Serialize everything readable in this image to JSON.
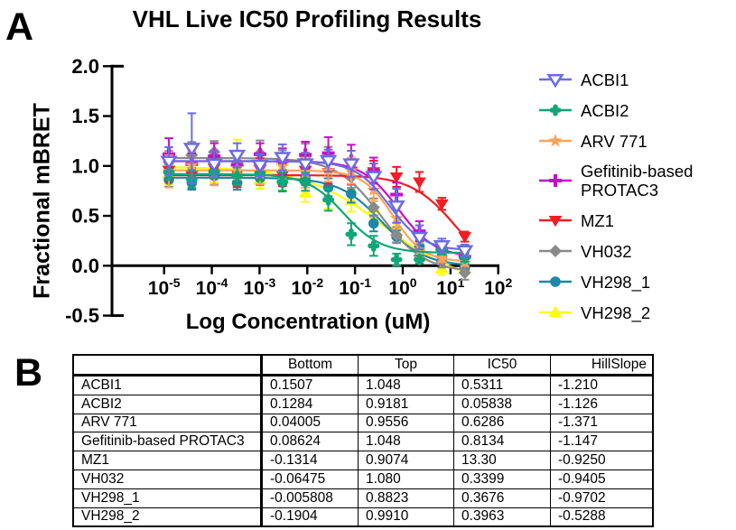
{
  "panel_a": {
    "label": "A"
  },
  "panel_b": {
    "label": "B"
  },
  "chart_data": {
    "type": "line",
    "title": "VHL Live IC50 Profiling Results",
    "xlabel": "Log Concentration (uM)",
    "ylabel": "Fractional mBRET",
    "x_scale": "log10",
    "x_tick_exponents": [
      -5,
      -4,
      -3,
      -2,
      -1,
      0,
      1,
      2
    ],
    "y_ticks": [
      "2.0",
      "1.5",
      "1.0",
      "0.5",
      "0.0",
      "-0.5"
    ],
    "ylim": [
      -0.5,
      2.0
    ],
    "legend_position": "right",
    "log_x": [
      -4.9,
      -4.42,
      -3.95,
      -3.47,
      -2.99,
      -2.52,
      -2.04,
      -1.56,
      -1.08,
      -0.61,
      -0.13,
      0.35,
      0.82,
      1.3
    ],
    "model": "Y = Bottom + (Top-Bottom)/(1+10^((log10(IC50)-X)*HillSlope))",
    "series": [
      {
        "name": "ACBI1",
        "color": "#6B6BE8",
        "marker": "triangle-down-open",
        "fit": {
          "bottom": 0.1507,
          "top": 1.048,
          "ic50": 0.5311,
          "hillslope": -1.21
        },
        "dev": [
          0.0,
          0.13,
          -0.03,
          0.06,
          -0.04,
          0.04,
          -0.02,
          0.03,
          0.06,
          0.1,
          0.09,
          0.0,
          0.01,
          -0.01
        ],
        "err": [
          0.14,
          0.35,
          0.13,
          0.12,
          0.11,
          0.13,
          0.11,
          0.11,
          0.13,
          0.13,
          0.17,
          0.12,
          0.07,
          0.06
        ]
      },
      {
        "name": "ACBI2",
        "color": "#10A678",
        "marker": "clover",
        "fit": {
          "bottom": 0.1284,
          "top": 0.9181,
          "ic50": 0.05838,
          "hillslope": -1.126
        },
        "dev": [
          0.02,
          -0.05,
          0.03,
          -0.02,
          0.02,
          -0.05,
          0.01,
          -0.02,
          -0.13,
          -0.06,
          -0.11,
          -0.08,
          0.03,
          -0.05
        ],
        "err": [
          0.08,
          0.09,
          0.07,
          0.09,
          0.07,
          0.09,
          0.09,
          0.11,
          0.11,
          0.1,
          0.06,
          0.04,
          0.05,
          0.04
        ]
      },
      {
        "name": "ARV 771",
        "color": "#F9A45B",
        "marker": "star",
        "fit": {
          "bottom": 0.04005,
          "top": 0.9556,
          "ic50": 0.6286,
          "hillslope": -1.371
        },
        "dev": [
          -0.01,
          0.05,
          -0.04,
          0.02,
          -0.03,
          0.04,
          -0.02,
          0.01,
          0.05,
          0.0,
          0.03,
          -0.02,
          0.0,
          -0.02
        ],
        "err": [
          0.16,
          0.14,
          0.11,
          0.11,
          0.11,
          0.13,
          0.15,
          0.11,
          0.13,
          0.11,
          0.1,
          0.07,
          0.04,
          0.03
        ]
      },
      {
        "name": "Gefitinib-based PROTAC3",
        "color": "#C511C5",
        "marker": "plus",
        "fit": {
          "bottom": 0.08624,
          "top": 1.048,
          "ic50": 0.8134,
          "hillslope": -1.147
        },
        "dev": [
          0.07,
          -0.03,
          0.05,
          -0.04,
          0.07,
          0.0,
          0.07,
          0.1,
          0.07,
          0.1,
          0.12,
          0.03,
          0.0,
          -0.02
        ],
        "err": [
          0.16,
          0.11,
          0.13,
          0.11,
          0.11,
          0.13,
          0.13,
          0.16,
          0.16,
          0.13,
          0.12,
          0.1,
          0.05,
          0.04
        ]
      },
      {
        "name": "MZ1",
        "color": "#EE1E24",
        "marker": "triangle-down",
        "fit": {
          "bottom": -0.1314,
          "top": 0.9074,
          "ic50": 13.3,
          "hillslope": -0.925
        },
        "dev": [
          0.05,
          0.0,
          0.07,
          0.01,
          0.06,
          0.0,
          0.05,
          0.03,
          0.05,
          0.06,
          0.05,
          0.1,
          0.07,
          0.0
        ],
        "err": [
          0.11,
          0.13,
          0.11,
          0.13,
          0.11,
          0.11,
          0.13,
          0.11,
          0.13,
          0.11,
          0.1,
          0.1,
          0.06,
          0.05
        ]
      },
      {
        "name": "VH032",
        "color": "#8A8A8A",
        "marker": "diamond",
        "fit": {
          "bottom": -0.06475,
          "top": 1.08,
          "ic50": 0.3399,
          "hillslope": -0.9405
        },
        "dev": [
          -0.04,
          0.03,
          0.06,
          -0.04,
          0.05,
          -0.02,
          0.05,
          0.1,
          0.05,
          -0.01,
          0.0,
          0.0,
          0.04,
          -0.03
        ],
        "err": [
          0.11,
          0.13,
          0.11,
          0.11,
          0.13,
          0.11,
          0.13,
          0.11,
          0.11,
          0.09,
          0.08,
          0.06,
          0.06,
          0.07
        ]
      },
      {
        "name": "VH298_1",
        "color": "#1C87A8",
        "marker": "circle",
        "fit": {
          "bottom": -0.005808,
          "top": 0.8823,
          "ic50": 0.3676,
          "hillslope": -0.9702
        },
        "dev": [
          -0.02,
          -0.05,
          0.02,
          -0.05,
          0.0,
          -0.04,
          0.02,
          -0.03,
          0.01,
          -0.1,
          0.0,
          0.07,
          0.05,
          -0.03
        ],
        "err": [
          0.07,
          0.07,
          0.09,
          0.07,
          0.07,
          0.09,
          0.07,
          0.09,
          0.09,
          0.08,
          0.06,
          0.06,
          0.05,
          0.04
        ]
      },
      {
        "name": "VH298_2",
        "color": "#FBFB0C",
        "marker": "triangle-up",
        "fit": {
          "bottom": -0.1904,
          "top": 0.991,
          "ic50": 0.3963,
          "hillslope": -0.5288
        },
        "dev": [
          -0.06,
          -0.02,
          -0.05,
          0.08,
          -0.08,
          -0.04,
          -0.12,
          -0.08,
          0.02,
          0.1,
          0.1,
          0.05,
          -0.06,
          0.03
        ],
        "err": [
          0.11,
          0.11,
          0.09,
          0.22,
          0.09,
          0.11,
          0.09,
          0.11,
          0.11,
          0.1,
          0.08,
          0.1,
          0.06,
          0.05
        ]
      }
    ]
  },
  "table": {
    "columns": [
      "",
      "Bottom",
      "Top",
      "IC50",
      "HillSlope"
    ],
    "rows": [
      [
        "ACBI1",
        "0.1507",
        "1.048",
        "0.5311",
        "-1.210"
      ],
      [
        "ACBI2",
        "0.1284",
        "0.9181",
        "0.05838",
        "-1.126"
      ],
      [
        "ARV 771",
        "0.04005",
        "0.9556",
        "0.6286",
        "-1.371"
      ],
      [
        "Gefitinib-based PROTAC3",
        "0.08624",
        "1.048",
        "0.8134",
        "-1.147"
      ],
      [
        "MZ1",
        "-0.1314",
        "0.9074",
        "13.30",
        "-0.9250"
      ],
      [
        "VH032",
        "-0.06475",
        "1.080",
        "0.3399",
        "-0.9405"
      ],
      [
        "VH298_1",
        "-0.005808",
        "0.8823",
        "0.3676",
        "-0.9702"
      ],
      [
        "VH298_2",
        "-0.1904",
        "0.9910",
        "0.3963",
        "-0.5288"
      ]
    ]
  }
}
